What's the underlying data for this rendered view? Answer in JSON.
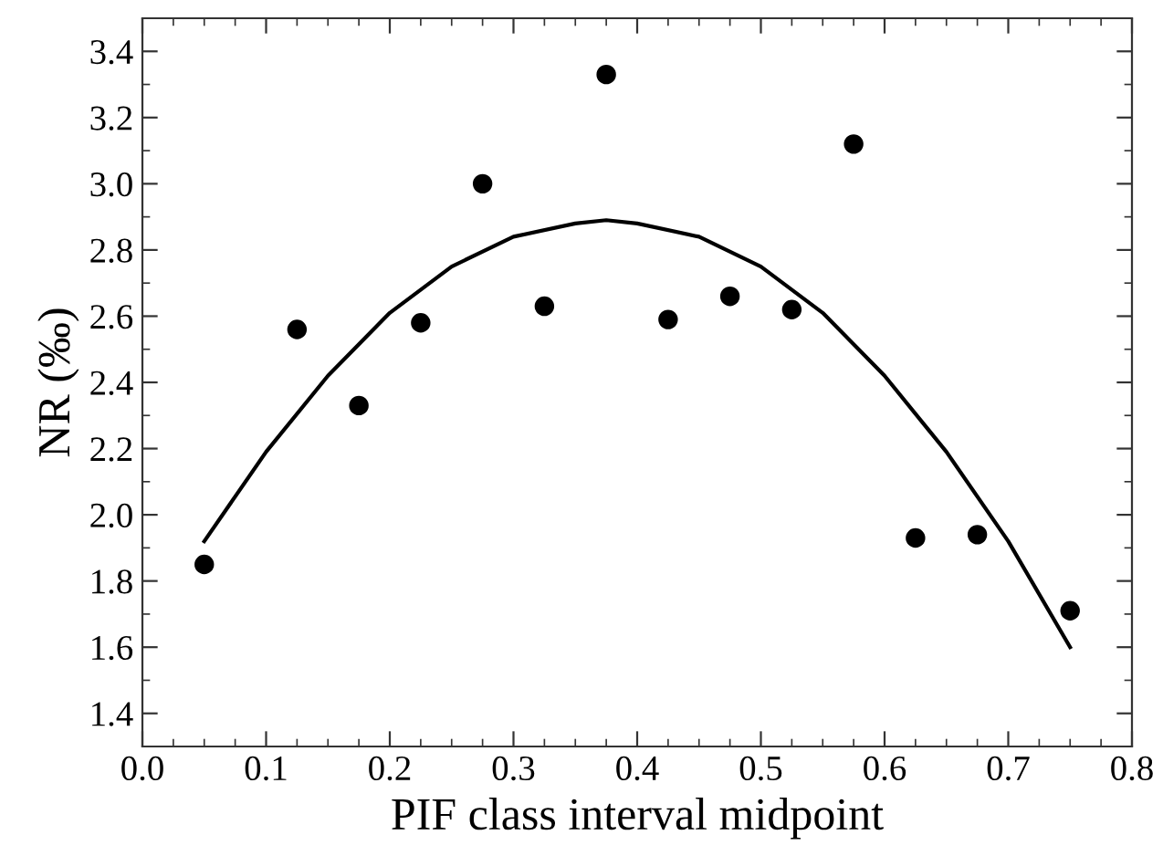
{
  "chart_data": {
    "type": "scatter",
    "xlabel": "PIF class interval midpoint",
    "ylabel": "NR (‰)",
    "xlim": [
      0.0,
      0.8
    ],
    "ylim": [
      1.3,
      3.5
    ],
    "xticks": [
      {
        "value": 0.0,
        "label": "0.0"
      },
      0.1,
      0.2,
      0.3,
      0.4,
      0.5,
      0.6,
      0.7,
      0.8
    ],
    "yticks": [
      1.4,
      1.6,
      1.8,
      {
        "value": 2.0,
        "label": "2.0"
      },
      2.2,
      2.4,
      2.6,
      2.8,
      {
        "value": 3.0,
        "label": "3.0"
      },
      3.2,
      3.4
    ],
    "grid": false,
    "legend": false,
    "series": [
      {
        "color": "#000000",
        "marker": "circle",
        "x": [
          0.05,
          0.125,
          0.175,
          0.225,
          0.275,
          0.325,
          0.375,
          0.425,
          0.475,
          0.525,
          0.575,
          0.625,
          0.675,
          0.75
        ],
        "values": [
          1.85,
          2.56,
          2.33,
          2.58,
          3.0,
          2.63,
          3.33,
          2.59,
          2.66,
          2.62,
          3.12,
          1.93,
          1.94,
          1.71
        ]
      },
      {
        "type": "line",
        "color": "#000000",
        "marker": "none",
        "line_style": "solid",
        "x": [
          0.05,
          0.1,
          0.15,
          0.2,
          0.25,
          0.3,
          0.35,
          0.375,
          0.4,
          0.45,
          0.5,
          0.55,
          0.6,
          0.65,
          0.7,
          0.75
        ],
        "values": [
          1.92,
          2.19,
          2.42,
          2.61,
          2.75,
          2.84,
          2.88,
          2.89,
          2.88,
          2.84,
          2.75,
          2.61,
          2.42,
          2.19,
          1.92,
          1.6
        ]
      }
    ]
  }
}
